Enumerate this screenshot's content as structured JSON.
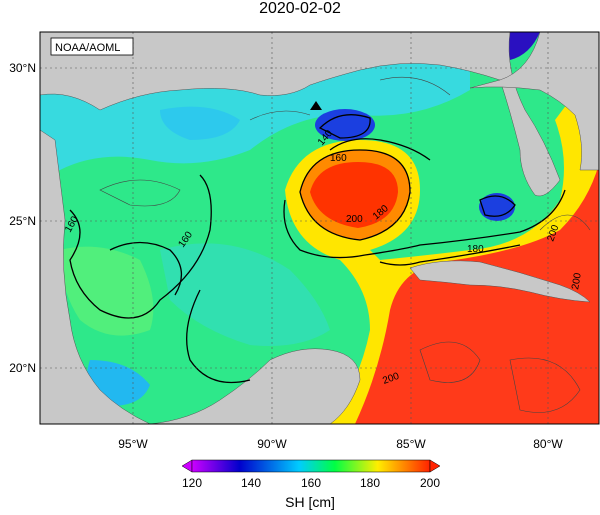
{
  "title": "2020-02-02",
  "credit": "NOAA/AOML",
  "lat_labels": [
    "30°N",
    "25°N",
    "20°N"
  ],
  "lon_labels": [
    "95°W",
    "90°W",
    "85°W",
    "80°W"
  ],
  "contour_labels": [
    "160",
    "160",
    "160",
    "140",
    "200",
    "180",
    "180",
    "200",
    "200",
    "200"
  ],
  "colorbar": {
    "label": "SH [cm]",
    "ticks": [
      "120",
      "140",
      "160",
      "180",
      "200"
    ],
    "min": 120,
    "max": 200,
    "colors": [
      "#cc00ff",
      "#0000cc",
      "#00ccff",
      "#00ff44",
      "#ffee00",
      "#ff2200"
    ]
  },
  "map": {
    "field": "sea surface height",
    "land_color": "#c8c8c8",
    "marker": "black triangle"
  }
}
